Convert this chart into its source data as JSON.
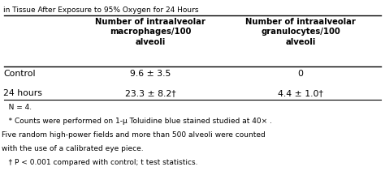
{
  "title_partial": "in Tissue After Exposure to 95% Oxygen for 24 Hours",
  "col1_header": "Number of intraalveolar\nmacrophages/100\nalveoli",
  "col2_header": "Number of intraalveolar\ngranulocytes/100\nalveoli",
  "row_labels": [
    "Control",
    "24 hours"
  ],
  "col1_values": [
    "9.6 ± 3.5",
    "23.3 ± 8.2†"
  ],
  "col2_values": [
    "0",
    "4.4 ± 1.0†"
  ],
  "footnotes": [
    "   N = 4.",
    "   * Counts were performed on 1-μ Toluidine blue stained studied at 40× .",
    "Five random high-power fields and more than 500 alveoli were counted",
    "with the use of a calibrated eye piece.",
    "   † P < 0.001 compared with control; t test statistics."
  ],
  "bg_color": "#ffffff",
  "text_color": "#000000",
  "title_fontsize": 6.5,
  "header_fontsize": 7.2,
  "row_fontsize": 7.8,
  "footnote_fontsize": 6.5
}
